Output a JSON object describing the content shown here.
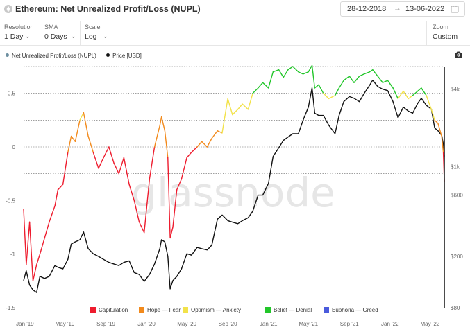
{
  "header": {
    "title": "Ethereum: Net Unrealized Profit/Loss (NUPL)",
    "date_from": "28-12-2018",
    "date_to": "13-06-2022",
    "date_arrow": "→"
  },
  "controls": {
    "resolution": {
      "label": "Resolution",
      "value": "1 Day"
    },
    "sma": {
      "label": "SMA",
      "value": "0 Days"
    },
    "scale": {
      "label": "Scale",
      "value": "Log"
    },
    "zoom": {
      "label": "Zoom",
      "value": "Custom"
    }
  },
  "watermark": "glassnode",
  "chart_data": {
    "type": "line",
    "legend": [
      {
        "name": "Net Unrealized Profit/Loss (NUPL)",
        "color": "#6d8fa0"
      },
      {
        "name": "Price [USD]",
        "color": "#111111"
      }
    ],
    "band_legend": [
      {
        "name": "Capitulation",
        "color": "#ee1c2e"
      },
      {
        "name": "Hope — Fear",
        "color": "#f28a1c"
      },
      {
        "name": "Optimism — Anxiety",
        "color": "#f2e24a"
      },
      {
        "name": "Belief — Denial",
        "color": "#22c62a"
      },
      {
        "name": "Euphoria — Greed",
        "color": "#4a5bdc"
      }
    ],
    "x_tick_labels": [
      "Jan '19",
      "May '19",
      "Sep '19",
      "Jan '20",
      "May '20",
      "Sep '20",
      "Jan '21",
      "May '21",
      "Sep '21",
      "Jan '22",
      "May '22"
    ],
    "y_left_ticks": [
      0.5,
      0,
      -0.5,
      -1,
      -1.5
    ],
    "y_left_tick_labels": [
      "0.5",
      "0",
      "-0.5",
      "-1",
      "-1.5"
    ],
    "y_left_range": [
      -1.5,
      0.75
    ],
    "y_right_scale": "log",
    "y_right_ticks": [
      4000,
      1000,
      600,
      200,
      80
    ],
    "y_right_tick_labels": [
      "$4k",
      "$1k",
      "$600",
      "$200",
      "$80"
    ],
    "y_right_range": [
      80,
      6000
    ],
    "reference_lines": [
      0.75,
      0.5,
      0.25,
      0,
      -0.25
    ],
    "x_range": [
      "2018-12-28",
      "2022-06-13"
    ],
    "series": [
      {
        "name": "Net Unrealized Profit/Loss (NUPL)",
        "axis": "left",
        "dates": [
          "2018-12-28",
          "2019-01-05",
          "2019-01-15",
          "2019-01-25",
          "2019-02-05",
          "2019-02-15",
          "2019-03-01",
          "2019-03-15",
          "2019-04-01",
          "2019-04-10",
          "2019-04-25",
          "2019-05-10",
          "2019-05-20",
          "2019-06-01",
          "2019-06-15",
          "2019-06-26",
          "2019-07-10",
          "2019-07-25",
          "2019-08-10",
          "2019-08-25",
          "2019-09-10",
          "2019-09-25",
          "2019-10-10",
          "2019-10-25",
          "2019-11-10",
          "2019-11-25",
          "2019-12-10",
          "2019-12-25",
          "2020-01-10",
          "2020-01-25",
          "2020-02-10",
          "2020-02-15",
          "2020-02-25",
          "2020-03-05",
          "2020-03-12",
          "2020-03-20",
          "2020-04-01",
          "2020-04-15",
          "2020-05-01",
          "2020-05-15",
          "2020-06-01",
          "2020-06-15",
          "2020-07-01",
          "2020-07-15",
          "2020-08-01",
          "2020-08-15",
          "2020-09-01",
          "2020-09-15",
          "2020-10-01",
          "2020-10-15",
          "2020-11-01",
          "2020-11-15",
          "2020-12-01",
          "2020-12-15",
          "2021-01-01",
          "2021-01-15",
          "2021-02-01",
          "2021-02-15",
          "2021-03-01",
          "2021-03-15",
          "2021-04-01",
          "2021-04-15",
          "2021-05-01",
          "2021-05-12",
          "2021-05-20",
          "2021-06-01",
          "2021-06-15",
          "2021-07-01",
          "2021-07-20",
          "2021-08-01",
          "2021-08-15",
          "2021-09-01",
          "2021-09-15",
          "2021-10-01",
          "2021-10-15",
          "2021-11-01",
          "2021-11-10",
          "2021-11-25",
          "2021-12-10",
          "2021-12-25",
          "2022-01-10",
          "2022-01-25",
          "2022-02-10",
          "2022-02-25",
          "2022-03-10",
          "2022-03-25",
          "2022-04-05",
          "2022-04-20",
          "2022-05-05",
          "2022-05-15",
          "2022-05-25",
          "2022-06-05",
          "2022-06-10",
          "2022-06-13"
        ],
        "values": [
          -0.58,
          -1.1,
          -0.7,
          -1.25,
          -1.1,
          -1.0,
          -0.85,
          -0.7,
          -0.55,
          -0.4,
          -0.35,
          -0.05,
          0.1,
          0.05,
          0.25,
          0.32,
          0.1,
          -0.05,
          -0.2,
          -0.1,
          0.0,
          -0.15,
          -0.25,
          -0.1,
          -0.35,
          -0.5,
          -0.7,
          -0.8,
          -0.3,
          0.0,
          0.2,
          0.28,
          0.15,
          -0.1,
          -0.85,
          -0.75,
          -0.4,
          -0.3,
          -0.1,
          -0.05,
          0.0,
          0.05,
          0.0,
          0.08,
          0.15,
          0.13,
          0.45,
          0.3,
          0.35,
          0.4,
          0.35,
          0.5,
          0.55,
          0.6,
          0.55,
          0.7,
          0.72,
          0.65,
          0.72,
          0.75,
          0.7,
          0.68,
          0.7,
          0.76,
          0.55,
          0.58,
          0.5,
          0.45,
          0.48,
          0.55,
          0.62,
          0.66,
          0.6,
          0.66,
          0.68,
          0.7,
          0.72,
          0.66,
          0.6,
          0.62,
          0.55,
          0.45,
          0.52,
          0.45,
          0.48,
          0.52,
          0.55,
          0.48,
          0.35,
          0.25,
          0.22,
          0.1,
          -0.05,
          -0.32
        ]
      },
      {
        "name": "Price [USD]",
        "axis": "right",
        "dates": [
          "2018-12-28",
          "2019-01-05",
          "2019-01-15",
          "2019-01-25",
          "2019-02-05",
          "2019-02-15",
          "2019-03-01",
          "2019-03-15",
          "2019-04-01",
          "2019-04-10",
          "2019-04-25",
          "2019-05-10",
          "2019-05-20",
          "2019-06-01",
          "2019-06-15",
          "2019-06-26",
          "2019-07-10",
          "2019-07-25",
          "2019-08-10",
          "2019-08-25",
          "2019-09-10",
          "2019-09-25",
          "2019-10-10",
          "2019-10-25",
          "2019-11-10",
          "2019-11-25",
          "2019-12-10",
          "2019-12-25",
          "2020-01-10",
          "2020-01-25",
          "2020-02-10",
          "2020-02-15",
          "2020-02-25",
          "2020-03-05",
          "2020-03-12",
          "2020-03-20",
          "2020-04-01",
          "2020-04-15",
          "2020-05-01",
          "2020-05-15",
          "2020-06-01",
          "2020-06-15",
          "2020-07-01",
          "2020-07-15",
          "2020-08-01",
          "2020-08-15",
          "2020-09-01",
          "2020-09-15",
          "2020-10-01",
          "2020-10-15",
          "2020-11-01",
          "2020-11-15",
          "2020-12-01",
          "2020-12-15",
          "2021-01-01",
          "2021-01-15",
          "2021-02-01",
          "2021-02-15",
          "2021-03-01",
          "2021-03-15",
          "2021-04-01",
          "2021-04-15",
          "2021-05-01",
          "2021-05-12",
          "2021-05-20",
          "2021-06-01",
          "2021-06-15",
          "2021-07-01",
          "2021-07-20",
          "2021-08-01",
          "2021-08-15",
          "2021-09-01",
          "2021-09-15",
          "2021-10-01",
          "2021-10-15",
          "2021-11-01",
          "2021-11-10",
          "2021-11-25",
          "2021-12-10",
          "2021-12-25",
          "2022-01-10",
          "2022-01-25",
          "2022-02-10",
          "2022-02-25",
          "2022-03-10",
          "2022-03-25",
          "2022-04-05",
          "2022-04-20",
          "2022-05-05",
          "2022-05-15",
          "2022-05-25",
          "2022-06-05",
          "2022-06-10",
          "2022-06-13"
        ],
        "values": [
          130,
          155,
          120,
          110,
          105,
          140,
          135,
          140,
          170,
          165,
          160,
          190,
          250,
          260,
          270,
          310,
          230,
          210,
          200,
          190,
          180,
          175,
          170,
          180,
          185,
          150,
          145,
          128,
          145,
          175,
          230,
          270,
          260,
          200,
          112,
          130,
          140,
          160,
          210,
          205,
          235,
          230,
          225,
          245,
          390,
          420,
          380,
          370,
          360,
          380,
          400,
          450,
          600,
          600,
          740,
          1200,
          1400,
          1600,
          1700,
          1800,
          1800,
          2300,
          2900,
          4100,
          2600,
          2500,
          2500,
          2100,
          1800,
          2500,
          3200,
          3500,
          3400,
          3200,
          3700,
          4300,
          4700,
          4200,
          4000,
          3900,
          3200,
          2400,
          2900,
          2700,
          2600,
          3100,
          3400,
          3000,
          2800,
          2000,
          1900,
          1750,
          1500,
          1200
        ]
      }
    ]
  }
}
